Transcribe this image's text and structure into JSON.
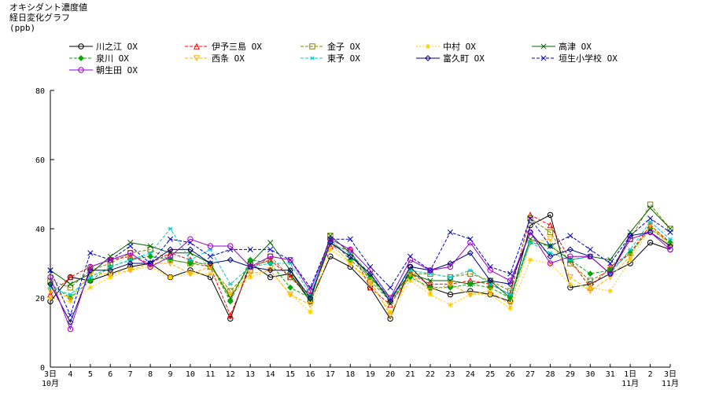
{
  "header": {
    "title": "オキシダント濃度値",
    "subtitle": "経日変化グラフ",
    "unit": "(ppb)"
  },
  "chart_data": {
    "type": "line",
    "title": "オキシダント濃度値 経日変化グラフ",
    "ylabel": "(ppb)",
    "xlabel": "",
    "ylim": [
      0,
      80
    ],
    "yticks": [
      0,
      20,
      40,
      60,
      80
    ],
    "grid": false,
    "legend_position": "top",
    "categories": [
      "3",
      "4",
      "5",
      "6",
      "7",
      "8",
      "9",
      "10",
      "11",
      "12",
      "13",
      "14",
      "15",
      "16",
      "17",
      "18",
      "19",
      "20",
      "21",
      "22",
      "23",
      "24",
      "25",
      "26",
      "27",
      "28",
      "29",
      "30",
      "31",
      "1",
      "2",
      "3"
    ],
    "month_labels": [
      {
        "index": 0,
        "text": "10月"
      },
      {
        "index": 29,
        "text": "11月"
      },
      {
        "index": 31,
        "text": "11月"
      }
    ],
    "day_suffix": [
      {
        "index": 0,
        "text": "日"
      },
      {
        "index": 29,
        "text": "日"
      },
      {
        "index": 31,
        "text": "日"
      }
    ],
    "series": [
      {
        "name": "川之江 OX",
        "color": "#000000",
        "marker": "circle",
        "dash": "solid",
        "values": [
          19,
          26,
          25,
          27,
          29,
          30,
          26,
          28,
          26,
          14,
          30,
          26,
          27,
          19,
          32,
          29,
          23,
          14,
          29,
          23,
          21,
          22,
          21,
          19,
          41,
          44,
          23,
          24,
          27,
          30,
          36,
          34
        ]
      },
      {
        "name": "伊予三島 OX",
        "color": "#ff0000",
        "marker": "triangle-up",
        "dash": "dash",
        "values": [
          21,
          26,
          29,
          31,
          32,
          30,
          33,
          31,
          29,
          15,
          29,
          31,
          26,
          21,
          35,
          34,
          23,
          18,
          27,
          24,
          24,
          25,
          24,
          21,
          44,
          41,
          31,
          23,
          29,
          33,
          41,
          36
        ]
      },
      {
        "name": "金子 OX",
        "color": "#808000",
        "marker": "square",
        "dash": "dash",
        "values": [
          25,
          23,
          28,
          30,
          33,
          34,
          31,
          30,
          29,
          22,
          28,
          32,
          26,
          20,
          38,
          33,
          25,
          19,
          27,
          27,
          26,
          27,
          25,
          22,
          43,
          39,
          30,
          25,
          28,
          37,
          47,
          40
        ]
      },
      {
        "name": "中村 OX",
        "color": "#ffcc00",
        "marker": "star",
        "dash": "dot",
        "values": [
          20,
          19,
          23,
          26,
          28,
          29,
          26,
          27,
          27,
          21,
          26,
          28,
          21,
          16,
          34,
          30,
          24,
          16,
          25,
          21,
          18,
          21,
          21,
          17,
          31,
          30,
          24,
          23,
          22,
          31,
          40,
          35
        ]
      },
      {
        "name": "高津 OX",
        "color": "#006400",
        "marker": "x",
        "dash": "solid",
        "values": [
          28,
          24,
          27,
          32,
          36,
          35,
          33,
          33,
          30,
          20,
          30,
          36,
          28,
          19,
          38,
          33,
          26,
          20,
          27,
          25,
          25,
          24,
          25,
          20,
          37,
          35,
          31,
          32,
          31,
          39,
          46,
          40
        ]
      },
      {
        "name": "泉川 OX",
        "color": "#00aa00",
        "marker": "diamond",
        "dash": "dash",
        "values": [
          24,
          20,
          25,
          29,
          31,
          32,
          31,
          30,
          30,
          19,
          31,
          30,
          23,
          20,
          37,
          31,
          26,
          19,
          26,
          23,
          23,
          24,
          23,
          20,
          36,
          35,
          31,
          27,
          28,
          33,
          40,
          36
        ]
      },
      {
        "name": "西条 OX",
        "color": "#ffb000",
        "marker": "triangle-down",
        "dash": "dash",
        "values": [
          22,
          20,
          27,
          27,
          28,
          30,
          30,
          27,
          29,
          21,
          27,
          28,
          21,
          18,
          36,
          30,
          25,
          15,
          27,
          22,
          24,
          21,
          22,
          18,
          36,
          37,
          26,
          22,
          26,
          32,
          41,
          35
        ]
      },
      {
        "name": "東予 OX",
        "color": "#00cccc",
        "marker": "asterisk",
        "dash": "dash",
        "values": [
          23,
          21,
          26,
          29,
          31,
          33,
          40,
          31,
          34,
          24,
          29,
          30,
          30,
          21,
          36,
          33,
          27,
          20,
          28,
          27,
          26,
          28,
          24,
          21,
          36,
          33,
          31,
          32,
          27,
          34,
          42,
          37
        ]
      },
      {
        "name": "富久町 OX",
        "color": "#000080",
        "marker": "diamond-open",
        "dash": "solid",
        "values": [
          24,
          13,
          28,
          28,
          30,
          30,
          34,
          34,
          30,
          31,
          29,
          28,
          28,
          20,
          36,
          32,
          27,
          19,
          29,
          28,
          30,
          33,
          25,
          24,
          39,
          32,
          34,
          32,
          27,
          38,
          39,
          35
        ]
      },
      {
        "name": "垣生小学校 OX",
        "color": "#0000cc",
        "marker": "x",
        "dash": "dash",
        "values": [
          28,
          15,
          33,
          31,
          35,
          30,
          37,
          36,
          32,
          34,
          34,
          34,
          31,
          23,
          37,
          37,
          29,
          23,
          32,
          28,
          39,
          37,
          29,
          27,
          43,
          35,
          38,
          34,
          30,
          38,
          43,
          39
        ]
      },
      {
        "name": "朝生田 OX",
        "color": "#9900cc",
        "marker": "circle",
        "dash": "solid",
        "values": [
          26,
          11,
          29,
          31,
          33,
          29,
          32,
          37,
          35,
          35,
          29,
          32,
          31,
          22,
          37,
          34,
          28,
          20,
          31,
          28,
          29,
          36,
          28,
          25,
          39,
          30,
          32,
          32,
          27,
          37,
          39,
          34
        ]
      }
    ]
  }
}
